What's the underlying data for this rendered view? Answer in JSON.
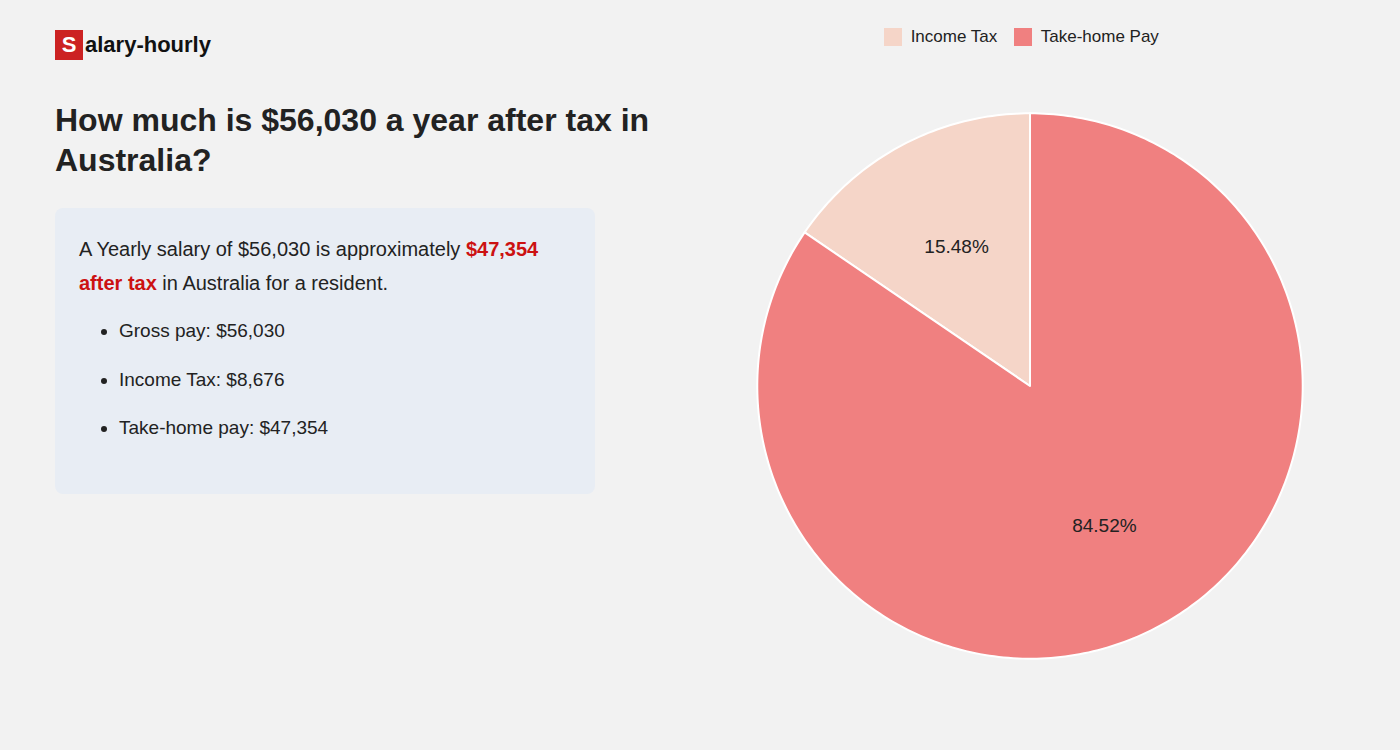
{
  "chart_data": {
    "type": "pie",
    "title": "How much is $56,030 a year after tax in Australia?",
    "categories": [
      "Income Tax",
      "Take-home Pay"
    ],
    "values": [
      15.48,
      84.52
    ],
    "value_labels": [
      "15.48%",
      "84.52%"
    ],
    "data_labels": true,
    "colors": [
      "#f5d5c8",
      "#f08080"
    ],
    "legend": "top",
    "annotations": [
      "Salary-hourly",
      "A Yearly salary of $56,030 is approximately",
      "$47,354 after tax",
      "in Australia for a resident.",
      "Gross pay: $56,030",
      "Income Tax: $8,676",
      "Take-home pay: $47,354"
    ]
  }
}
